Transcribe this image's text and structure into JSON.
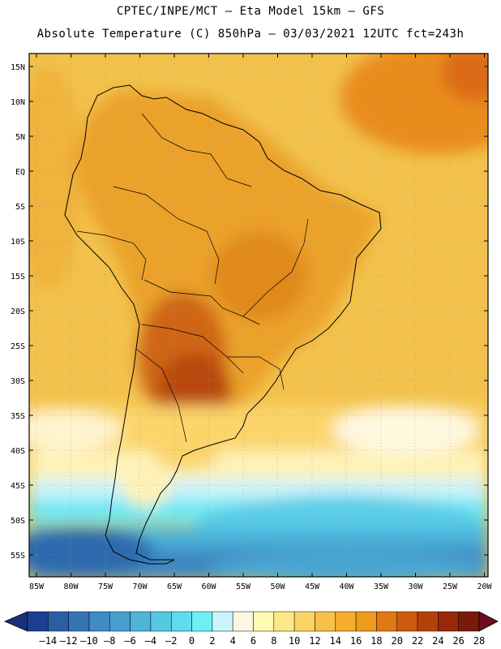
{
  "header": {
    "line1": "CPTEC/INPE/MCT –  Eta Model 15km – GFS",
    "line2": "Absolute Temperature (C) 850hPa – 03/03/2021 12UTC fct=243h"
  },
  "map": {
    "lon_range": [
      -86,
      -19
    ],
    "lat_range": [
      -58,
      17
    ],
    "lat_ticks": [
      "15N",
      "10N",
      "5N",
      "EQ",
      "5S",
      "10S",
      "15S",
      "20S",
      "25S",
      "30S",
      "35S",
      "40S",
      "45S",
      "50S",
      "55S"
    ],
    "lon_ticks": [
      "85W",
      "80W",
      "75W",
      "70W",
      "65W",
      "60W",
      "55W",
      "50W",
      "45W",
      "40W",
      "35W",
      "30W",
      "25W",
      "20W"
    ]
  },
  "colorbar": {
    "labels": [
      "-14",
      "-12",
      "-10",
      "-8",
      "-6",
      "-4",
      "-2",
      "0",
      "2",
      "4",
      "6",
      "8",
      "10",
      "12",
      "14",
      "16",
      "18",
      "20",
      "22",
      "24",
      "26",
      "28"
    ],
    "colors": [
      "#1d3f8f",
      "#2a5ea5",
      "#3574b5",
      "#3f8bc3",
      "#479fcf",
      "#4fb4da",
      "#57c8e4",
      "#5fdcec",
      "#6cf0f5",
      "#c8f4fb",
      "#fdf6e2",
      "#fffbb0",
      "#fde888",
      "#fbd466",
      "#f8c048",
      "#f4ad2c",
      "#ee9a1a",
      "#e17812",
      "#cc5b0e",
      "#b4410c",
      "#97290b",
      "#7a1a0a"
    ],
    "under_color": "#1a2f7a",
    "over_color": "#6a0f20"
  },
  "legend": {
    "land_outline": "#000000",
    "ocean_warm": "#f0c24a",
    "land_base": "#eaa126"
  }
}
